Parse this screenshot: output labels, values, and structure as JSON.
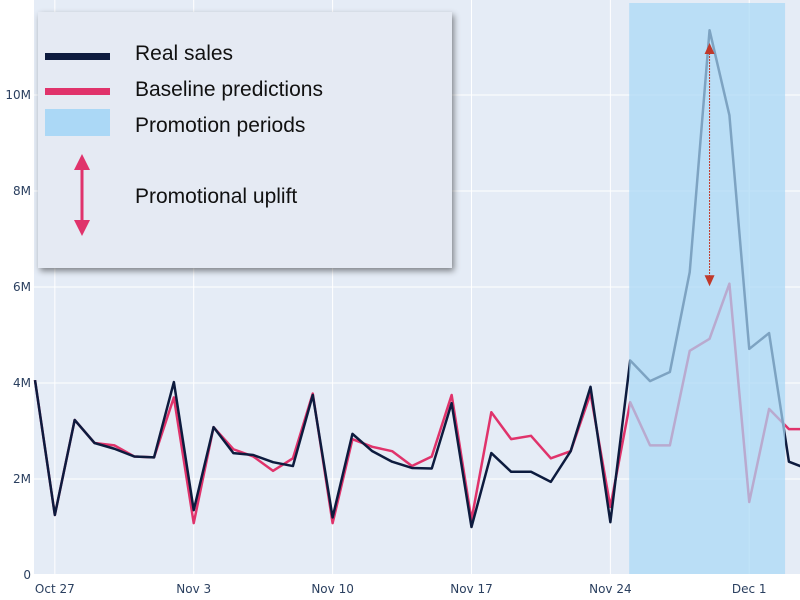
{
  "chart_data": {
    "type": "line",
    "x": [
      "Oct 26",
      "Oct 27",
      "Oct 28",
      "Oct 29",
      "Oct 30",
      "Oct 31",
      "Nov 1",
      "Nov 2",
      "Nov 3",
      "Nov 4",
      "Nov 5",
      "Nov 6",
      "Nov 7",
      "Nov 8",
      "Nov 9",
      "Nov 10",
      "Nov 11",
      "Nov 12",
      "Nov 13",
      "Nov 14",
      "Nov 15",
      "Nov 16",
      "Nov 17",
      "Nov 18",
      "Nov 19",
      "Nov 20",
      "Nov 21",
      "Nov 22",
      "Nov 23",
      "Nov 24",
      "Nov 25",
      "Nov 26",
      "Nov 27",
      "Nov 28",
      "Nov 29",
      "Nov 30",
      "Dec 1",
      "Dec 2",
      "Dec 3",
      "Dec 4"
    ],
    "series": [
      {
        "name": "Real sales",
        "color": "#0d1b3e",
        "values": [
          4.06,
          1.25,
          3.23,
          2.75,
          2.63,
          2.47,
          2.45,
          4.02,
          1.35,
          3.08,
          2.54,
          2.5,
          2.35,
          2.27,
          3.75,
          1.2,
          2.94,
          2.58,
          2.36,
          2.23,
          2.22,
          3.58,
          1.0,
          2.54,
          2.15,
          2.15,
          1.94,
          2.58,
          3.92,
          1.1,
          4.47,
          4.04,
          4.23,
          6.31,
          11.35,
          9.58,
          4.71,
          5.04,
          2.36,
          2.2
        ]
      },
      {
        "name": "Baseline predictions",
        "color": "#e0336b",
        "values": [
          4.06,
          1.25,
          3.23,
          2.75,
          2.7,
          2.47,
          2.45,
          3.7,
          1.08,
          3.08,
          2.62,
          2.47,
          2.17,
          2.43,
          3.78,
          1.08,
          2.83,
          2.67,
          2.58,
          2.27,
          2.47,
          3.75,
          1.15,
          3.39,
          2.83,
          2.9,
          2.43,
          2.58,
          3.78,
          1.42,
          3.6,
          2.7,
          2.7,
          4.67,
          4.92,
          6.07,
          1.52,
          3.46,
          3.04,
          3.04
        ]
      }
    ],
    "y_unit": "M",
    "ylim": [
      0,
      12
    ],
    "xlim": [
      "Oct 26",
      "Dec 4"
    ],
    "yticks": [
      "0",
      "2M",
      "4M",
      "6M",
      "8M",
      "10M"
    ],
    "ytick_values": [
      0,
      2,
      4,
      6,
      8,
      10
    ],
    "xticks": [
      "Oct 27",
      "Nov 3",
      "Nov 10",
      "Nov 17",
      "Nov 24",
      "Dec 1"
    ],
    "promotion_periods": [
      {
        "start": "Nov 25",
        "end": "Dec 2",
        "color": "#a9d8f5"
      }
    ],
    "uplift_arrow": {
      "date": "Nov 29",
      "from": 11.0,
      "to": 6.1,
      "color": "#c0392b"
    },
    "grid": true,
    "background": "#e5ecf6",
    "legend": {
      "position": "top-left",
      "items": [
        {
          "label": "Real sales",
          "kind": "line",
          "color": "#0d1b3e"
        },
        {
          "label": "Baseline predictions",
          "kind": "line",
          "color": "#e0336b"
        },
        {
          "label": "Promotion periods",
          "kind": "area",
          "color": "#abd8f6"
        },
        {
          "label": "Promotional uplift",
          "kind": "double-arrow",
          "color": "#e0336b"
        }
      ]
    }
  }
}
